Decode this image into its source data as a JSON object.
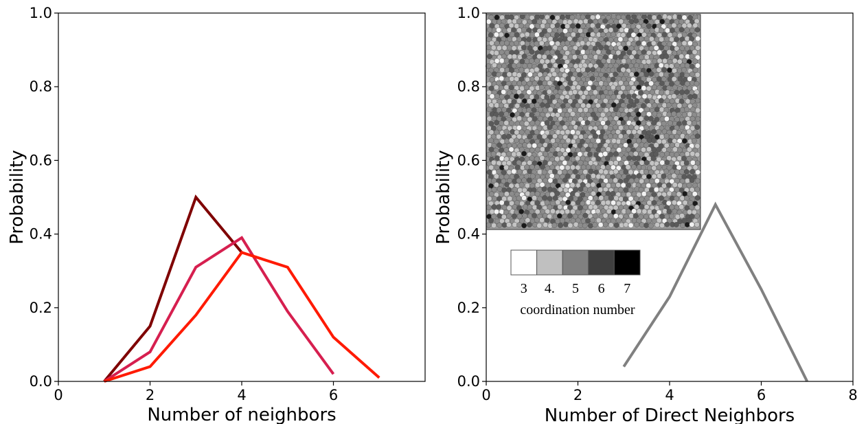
{
  "chart_data": [
    {
      "type": "line",
      "xlabel": "Number of neighbors",
      "ylabel": "Probability",
      "xlim": [
        0,
        8
      ],
      "ylim": [
        0,
        1.0
      ],
      "xticks": [
        0,
        2,
        4,
        6
      ],
      "yticks": [
        0.0,
        0.2,
        0.4,
        0.6,
        0.8,
        1.0
      ],
      "xtick_labels": [
        "0",
        "2",
        "4",
        "6"
      ],
      "ytick_labels": [
        "0.0",
        "0.2",
        "0.4",
        "0.6",
        "0.8",
        "1.0"
      ],
      "grid": false,
      "series": [
        {
          "color": "#7f0000",
          "x": [
            1,
            2,
            3,
            4
          ],
          "y": [
            0.0,
            0.15,
            0.5,
            0.35
          ]
        },
        {
          "color": "#d61f4f",
          "x": [
            1,
            2,
            3,
            4,
            5,
            6
          ],
          "y": [
            0.0,
            0.08,
            0.31,
            0.39,
            0.19,
            0.02
          ]
        },
        {
          "color": "#ff1a00",
          "x": [
            1,
            2,
            3,
            4,
            5,
            6,
            7
          ],
          "y": [
            0.0,
            0.04,
            0.18,
            0.35,
            0.31,
            0.12,
            0.01
          ]
        }
      ]
    },
    {
      "type": "line",
      "xlabel": "Number of Direct Neighbors",
      "ylabel": "Probability",
      "xlim": [
        0,
        8
      ],
      "ylim": [
        0,
        1.0
      ],
      "xticks": [
        0,
        2,
        4,
        6,
        8
      ],
      "yticks": [
        0.0,
        0.2,
        0.4,
        0.6,
        0.8,
        1.0
      ],
      "xtick_labels": [
        "0",
        "2",
        "4",
        "6",
        "8"
      ],
      "ytick_labels": [
        "0.0",
        "0.2",
        "0.4",
        "0.6",
        "0.8",
        "1.0"
      ],
      "grid": false,
      "series": [
        {
          "color": "#808080",
          "x": [
            3,
            4,
            5,
            6,
            7
          ],
          "y": [
            0.04,
            0.23,
            0.48,
            0.25,
            0.0
          ]
        }
      ],
      "inset": {
        "kind": "packing-image",
        "colorbar": {
          "title": "coordination number",
          "labels": [
            "3",
            "4.",
            "5",
            "6",
            "7"
          ],
          "colors": [
            "#ffffff",
            "#c0c0c0",
            "#808080",
            "#404040",
            "#000000"
          ]
        }
      }
    }
  ]
}
